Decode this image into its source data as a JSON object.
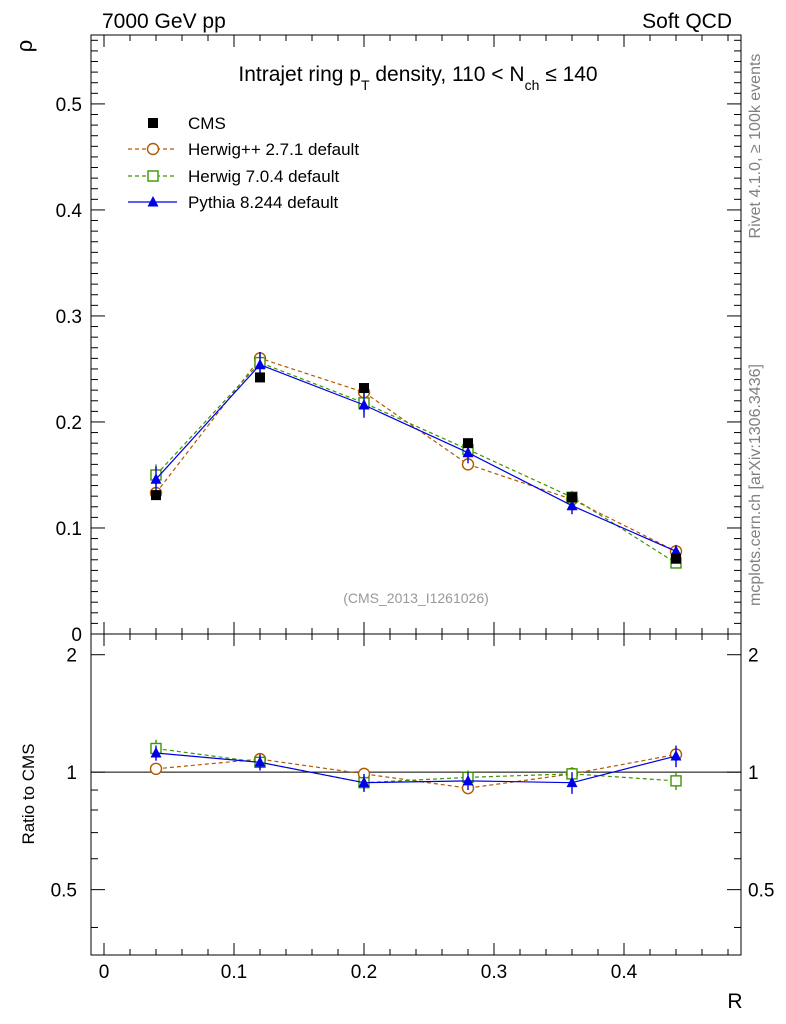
{
  "header": {
    "left": "7000 GeV pp",
    "right": "Soft QCD"
  },
  "side_labels": {
    "rivet": "Rivet 4.1.0, ≥ 100k events",
    "mcplots": "mcplots.cern.ch [arXiv:1306.3436]"
  },
  "chart_data": {
    "type": "line",
    "title": {
      "prefix": "Intrajet ring p",
      "sub1": "T",
      "middle": " density, 110 < N",
      "sub2": "ch",
      "suffix": " ≤ 140"
    },
    "analysis_label": "(CMS_2013_I1261026)",
    "xlabel": "R",
    "ylabel": "ρ",
    "ratio_ylabel": "Ratio to CMS",
    "xlim": [
      -0.01,
      0.49
    ],
    "ylim": [
      0,
      0.565
    ],
    "ratio_ylim": [
      0.34,
      2.26
    ],
    "x_ticks": [
      "0",
      "0.1",
      "0.2",
      "0.3",
      "0.4"
    ],
    "x_tick_values": [
      0,
      0.1,
      0.2,
      0.3,
      0.4
    ],
    "y_ticks": [
      "0",
      "0.1",
      "0.2",
      "0.3",
      "0.4",
      "0.5"
    ],
    "y_tick_values": [
      0,
      0.1,
      0.2,
      0.3,
      0.4,
      0.5
    ],
    "ratio_ticks": [
      "0.5",
      "1",
      "2"
    ],
    "ratio_tick_values": [
      0.5,
      1,
      2
    ],
    "x": [
      0.04,
      0.12,
      0.2,
      0.28,
      0.36,
      0.44
    ],
    "x_half_width": 0.04,
    "series": [
      {
        "name": "CMS",
        "style": "data",
        "color": "#000000",
        "marker": "square-filled",
        "values": [
          0.131,
          0.242,
          0.232,
          0.18,
          0.129,
          0.071
        ],
        "errors": [
          0.003,
          0.004,
          0.004,
          0.003,
          0.003,
          0.002
        ],
        "ratio": [
          1,
          1,
          1,
          1,
          1,
          1
        ]
      },
      {
        "name": "Herwig++ 2.7.1 default",
        "style": "dashed",
        "color": "#b35900",
        "marker": "circle-open",
        "values": [
          0.133,
          0.26,
          0.228,
          0.16,
          0.127,
          0.078
        ],
        "errors": [
          0.003,
          0.004,
          0.004,
          0.003,
          0.003,
          0.002
        ],
        "ratio": [
          1.02,
          1.08,
          0.99,
          0.91,
          0.99,
          1.11
        ],
        "ratio_errors": [
          0.03,
          0.03,
          0.02,
          0.02,
          0.02,
          0.03
        ]
      },
      {
        "name": "Herwig 7.0.4 default",
        "style": "dashed",
        "color": "#3c9600",
        "marker": "square-open",
        "values": [
          0.15,
          0.256,
          0.218,
          0.174,
          0.129,
          0.067
        ],
        "errors": [
          0.01,
          0.01,
          0.01,
          0.008,
          0.006,
          0.004
        ],
        "ratio": [
          1.15,
          1.06,
          0.94,
          0.97,
          0.99,
          0.95
        ],
        "ratio_errors": [
          0.06,
          0.04,
          0.04,
          0.04,
          0.04,
          0.05
        ]
      },
      {
        "name": "Pythia 8.244 default",
        "style": "solid",
        "color": "#0000e6",
        "marker": "triangle-filled",
        "values": [
          0.146,
          0.254,
          0.216,
          0.171,
          0.121,
          0.078
        ],
        "errors": [
          0.012,
          0.012,
          0.012,
          0.01,
          0.008,
          0.006
        ],
        "ratio": [
          1.12,
          1.06,
          0.94,
          0.95,
          0.94,
          1.1
        ],
        "ratio_errors": [
          0.05,
          0.05,
          0.05,
          0.05,
          0.06,
          0.07
        ]
      }
    ],
    "legend_position": "top-left"
  }
}
